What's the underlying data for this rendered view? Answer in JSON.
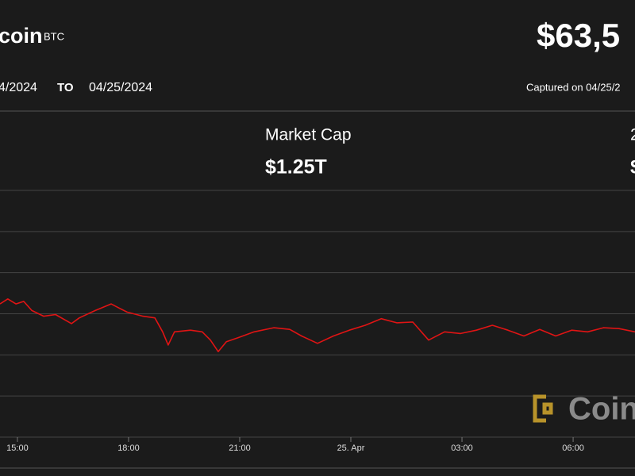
{
  "header": {
    "name": "coin",
    "symbol": "BTC",
    "price": "$63,5",
    "from": "4/2024",
    "to_word": "TO",
    "to": "04/25/2024",
    "captured": "Captured on 04/25/2",
    "stat_label": "Market Cap",
    "stat_value": "$1.25T",
    "stat2_label": "2",
    "stat2_value": "$",
    "watermark": "Coin"
  },
  "chart_data": {
    "type": "line",
    "x": [
      14.53,
      14.74,
      14.96,
      15.17,
      15.39,
      15.71,
      16.03,
      16.46,
      16.67,
      17.1,
      17.53,
      17.74,
      17.96,
      18.39,
      18.71,
      18.92,
      19.07,
      19.24,
      19.67,
      19.99,
      20.21,
      20.42,
      20.64,
      20.96,
      21.39,
      21.92,
      22.35,
      22.67,
      23.1,
      23.53,
      23.96,
      24.39,
      24.82,
      25.24,
      25.67,
      26.1,
      26.53,
      26.96,
      27.39,
      27.82,
      28.24,
      28.67,
      29.1,
      29.53,
      29.96,
      30.39,
      30.82,
      31.24,
      31.67
    ],
    "series": [
      {
        "name": "BTC",
        "color": "#e01414",
        "values": [
          63870,
          63930,
          63870,
          63900,
          63790,
          63720,
          63740,
          63630,
          63700,
          63790,
          63870,
          63820,
          63770,
          63720,
          63700,
          63530,
          63370,
          63530,
          63550,
          63530,
          63430,
          63290,
          63410,
          63460,
          63530,
          63580,
          63560,
          63480,
          63390,
          63480,
          63550,
          63610,
          63690,
          63640,
          63650,
          63430,
          63530,
          63510,
          63550,
          63610,
          63550,
          63480,
          63560,
          63480,
          63550,
          63530,
          63580,
          63570,
          63530
        ]
      }
    ],
    "xlim": [
      14.53,
      31.67
    ],
    "xticks": [
      {
        "value": 15,
        "label": "15:00"
      },
      {
        "value": 18,
        "label": "18:00"
      },
      {
        "value": 21,
        "label": "21:00"
      },
      {
        "value": 24,
        "label": "25. Apr"
      },
      {
        "value": 27,
        "label": "03:00"
      },
      {
        "value": 30,
        "label": "06:00"
      }
    ],
    "ylim": [
      62250,
      65250
    ],
    "yticks": [
      62250,
      62750,
      63250,
      63750,
      64250,
      64750,
      65250
    ],
    "grid": true
  }
}
